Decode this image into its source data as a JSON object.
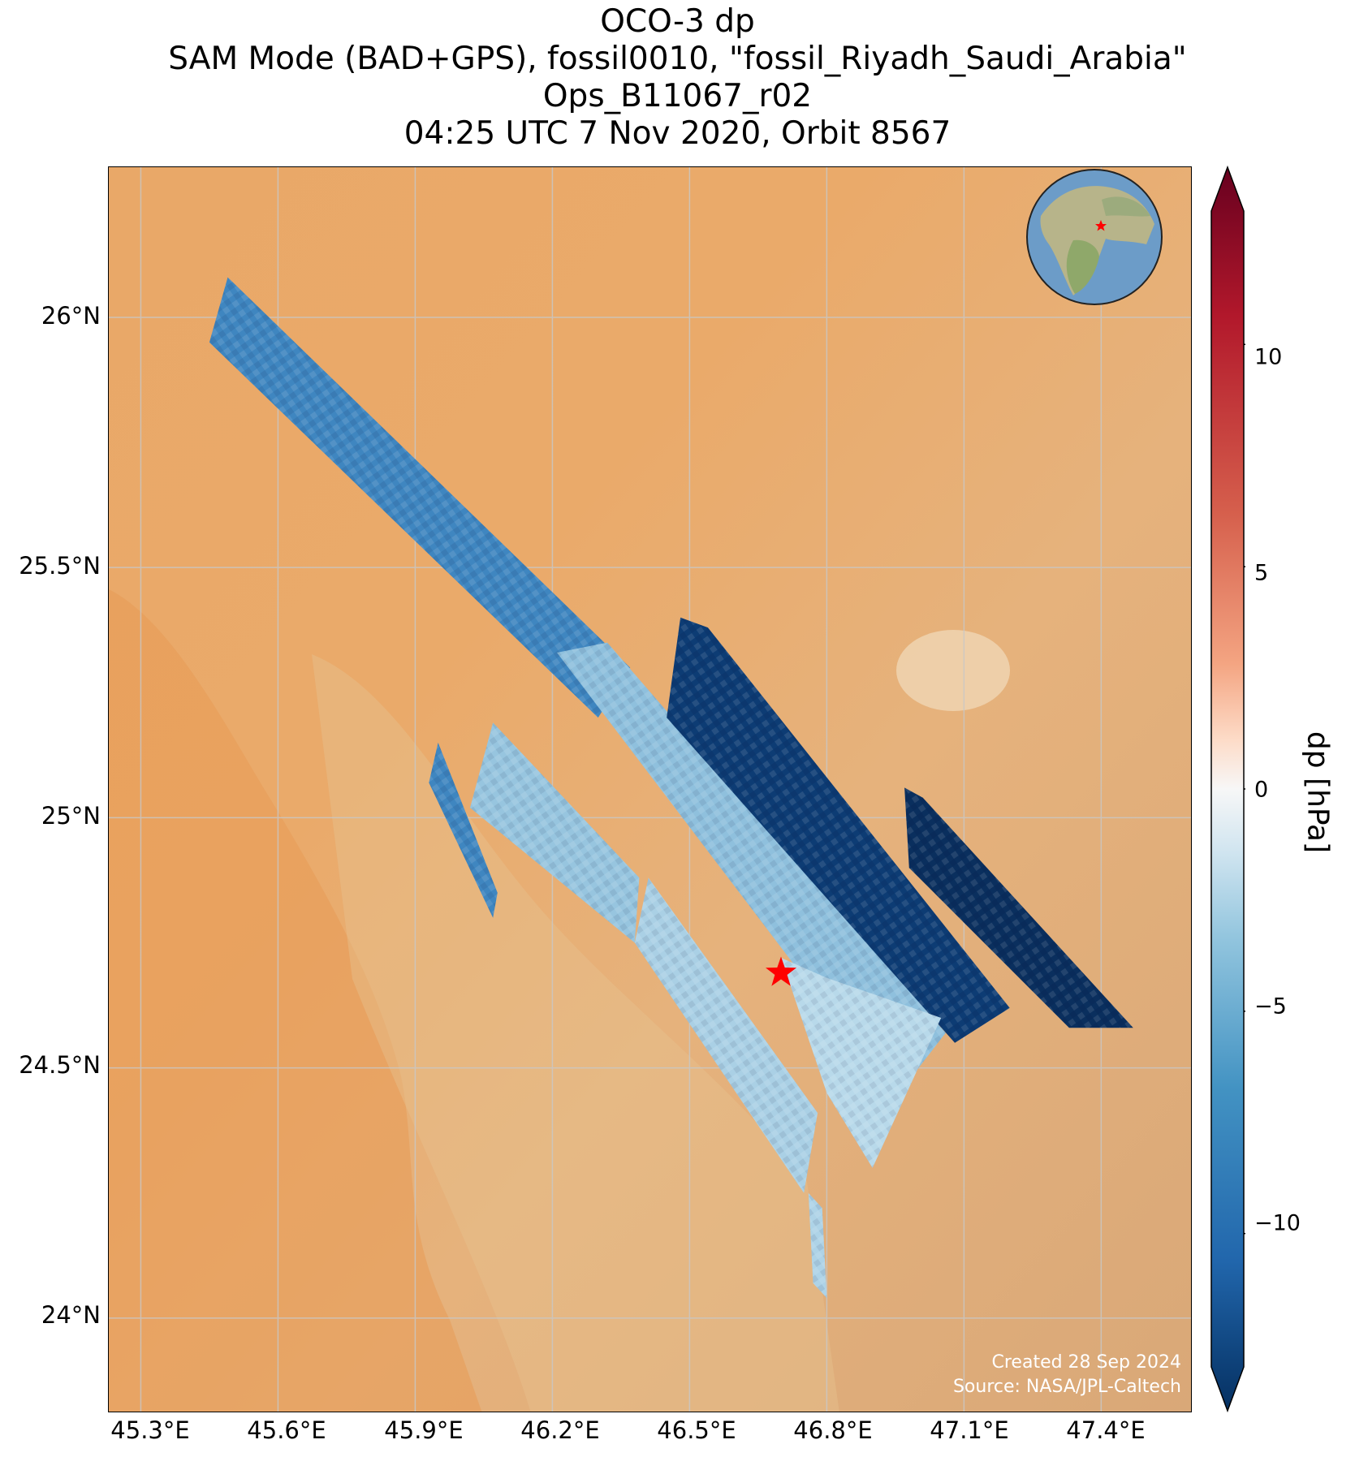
{
  "title": {
    "line1": "OCO-3 dp",
    "line2": "SAM Mode (BAD+GPS), fossil0010, \"fossil_Riyadh_Saudi_Arabia\"",
    "line3": "Ops_B11067_r02",
    "line4": "04:25 UTC 7 Nov 2020, Orbit 8567"
  },
  "map": {
    "lat_ticks": [
      "26°N",
      "25.5°N",
      "25°N",
      "24.5°N",
      "24°N"
    ],
    "lon_ticks": [
      "45.3°E",
      "45.6°E",
      "45.9°E",
      "46.2°E",
      "46.5°E",
      "46.8°E",
      "47.1°E",
      "47.4°E"
    ],
    "extent": {
      "lon": [
        45.23,
        47.6
      ],
      "lat": [
        23.81,
        26.3
      ]
    },
    "gridlines": true,
    "basemap": "satellite imagery (desert)",
    "target_marker": {
      "lon": 46.7,
      "lat": 24.69,
      "color": "#ff0000",
      "icon": "star-icon"
    },
    "footer": {
      "created": "Created 28 Sep 2024",
      "source": "Source: NASA/JPL-Caltech"
    },
    "inset": {
      "icon": "globe-icon",
      "marker_color": "#ff0000"
    }
  },
  "colorbar": {
    "label": "dp [hPa]",
    "ticks": [
      "10",
      "5",
      "0",
      "−5",
      "−10"
    ],
    "tick_values": [
      10,
      5,
      0,
      -5,
      -10
    ],
    "range": [
      -13,
      13
    ],
    "colormap": "RdBu_r",
    "extend": "both"
  }
}
